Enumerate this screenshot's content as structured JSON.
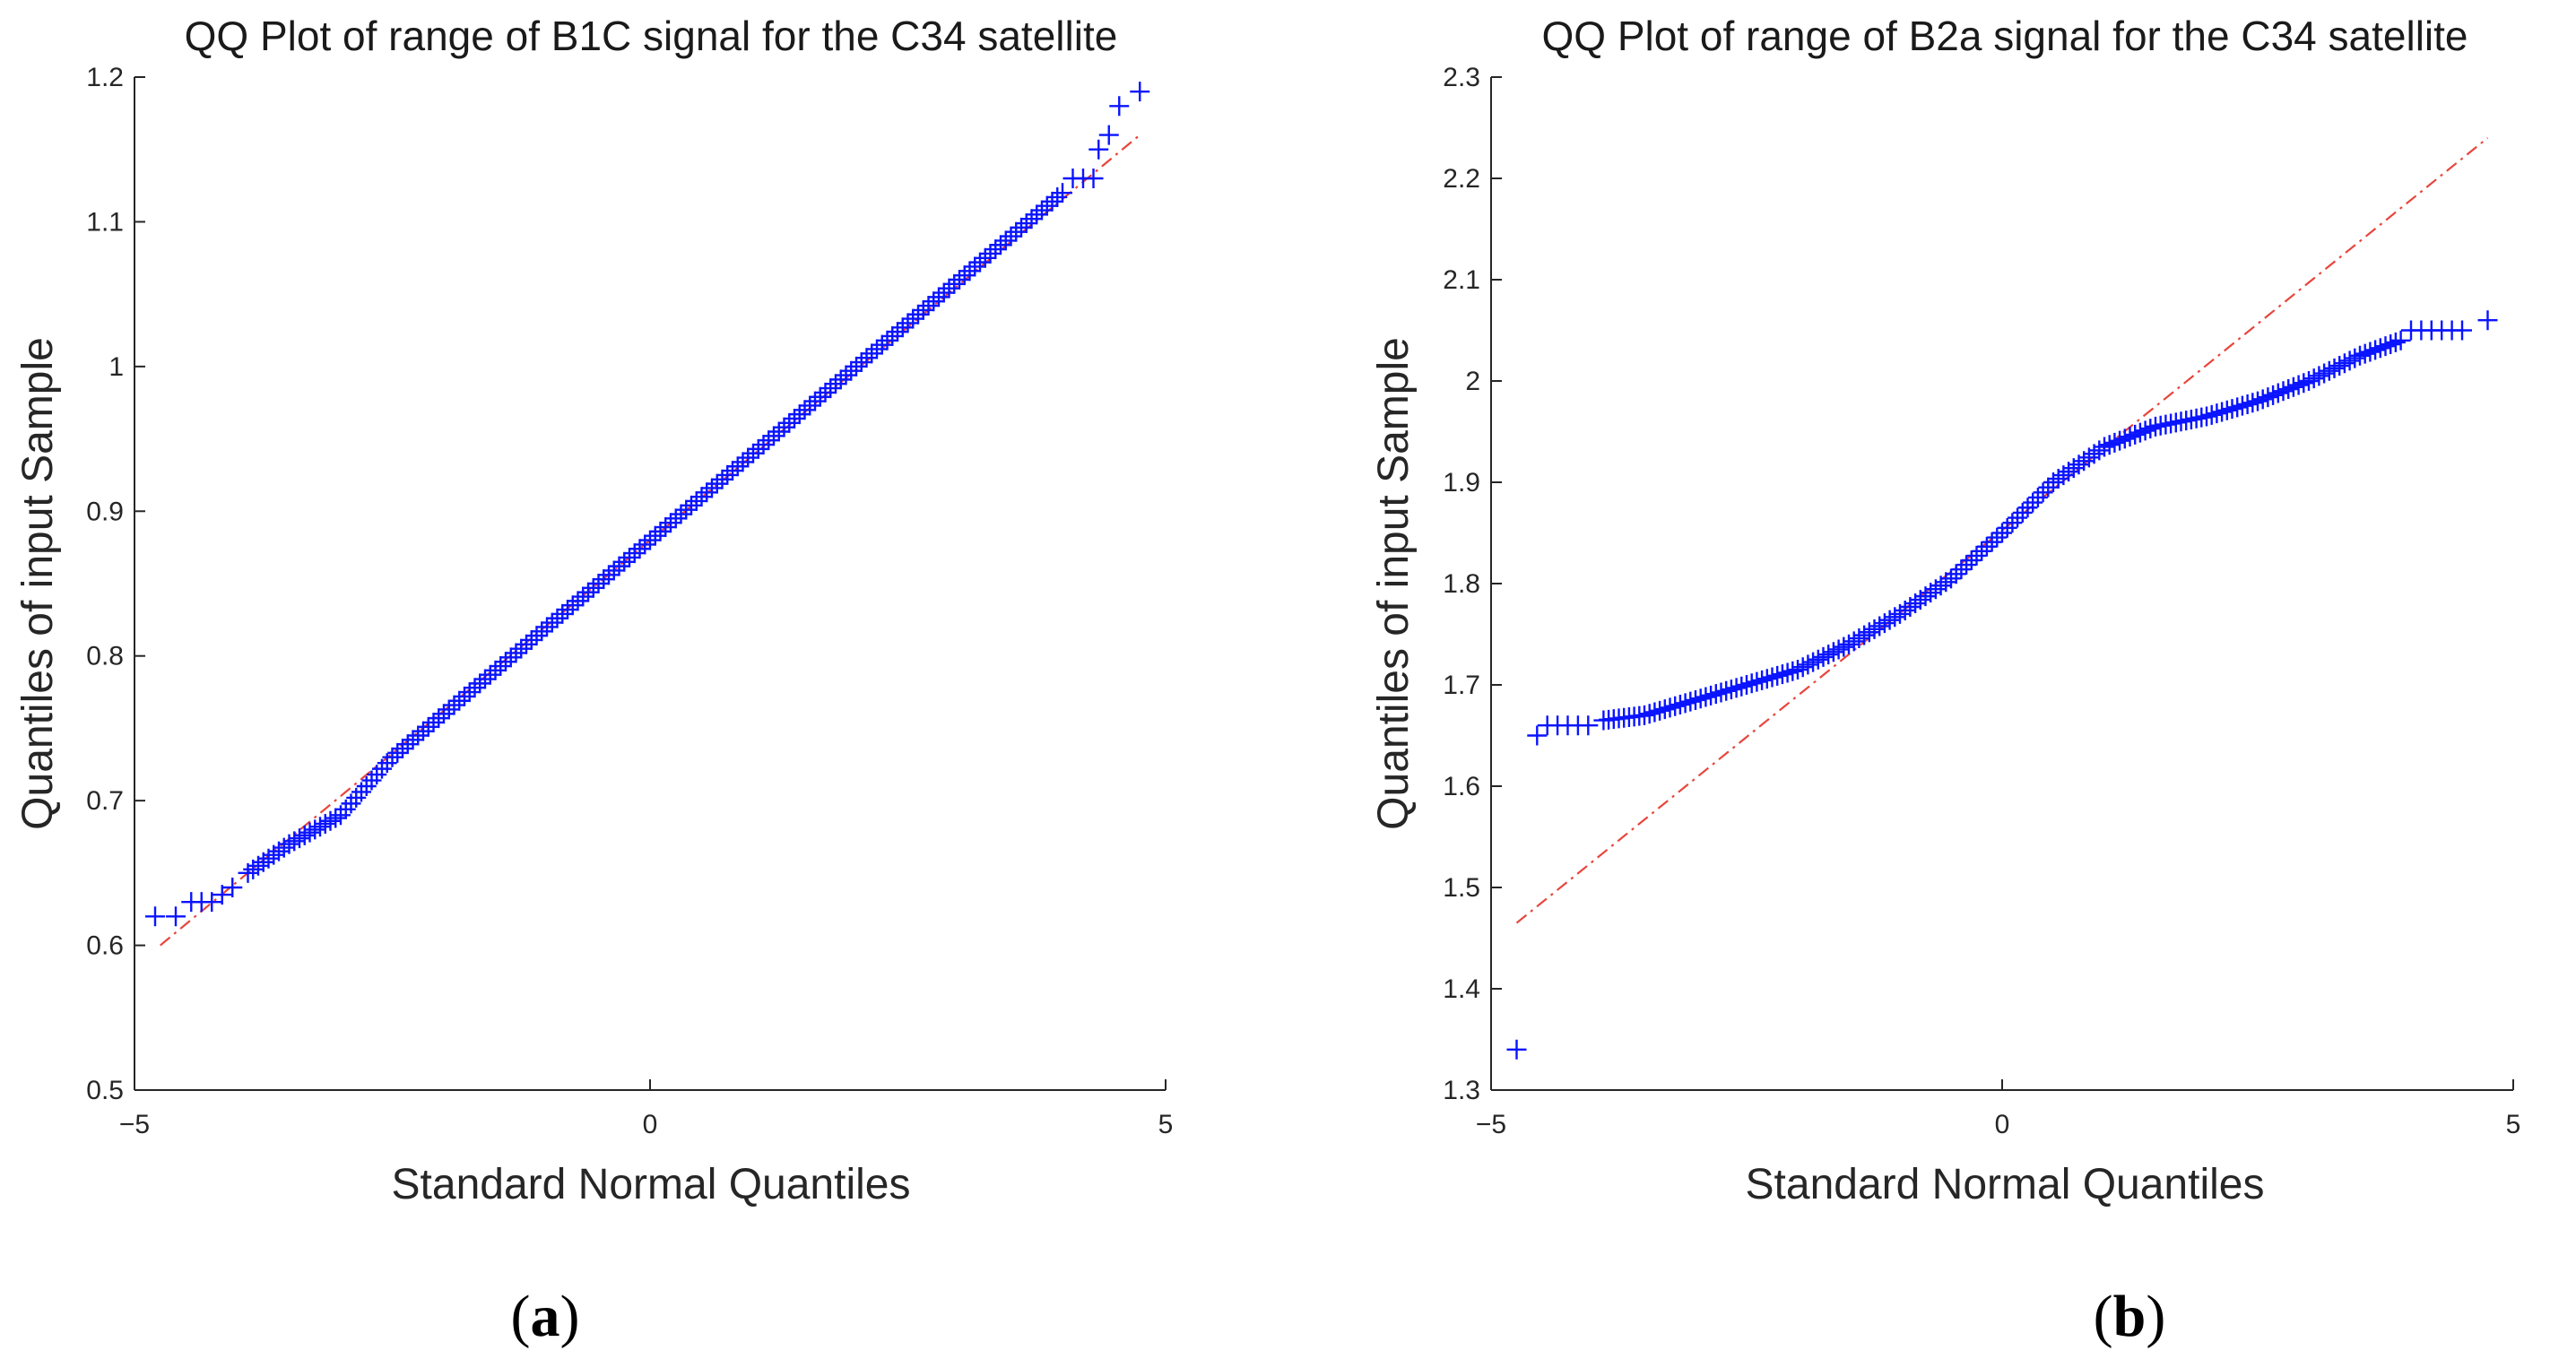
{
  "chart_data": [
    {
      "type": "scatter",
      "panel_label": "a",
      "title": "QQ Plot of range of B1C signal for the C34 satellite",
      "xlabel": "Standard Normal Quantiles",
      "ylabel": "Quantiles of input Sample",
      "xlim": [
        -5,
        5
      ],
      "ylim": [
        0.5,
        1.2
      ],
      "xticks": [
        -5,
        0,
        5
      ],
      "xtick_labels": [
        "−5",
        "0",
        "5"
      ],
      "yticks": [
        0.5,
        0.6,
        0.7,
        0.8,
        0.9,
        1.0,
        1.1,
        1.2
      ],
      "ytick_labels": [
        "0.5",
        "0.6",
        "0.7",
        "0.8",
        "0.9",
        "1",
        "1.1",
        "1.2"
      ],
      "reference_line": {
        "x": [
          -4.75,
          4.75
        ],
        "y": [
          0.6,
          1.16
        ]
      },
      "series": [
        {
          "name": "sample quantiles",
          "marker": "+",
          "color": "#0a14ff",
          "points": [
            [
              -4.8,
              0.62
            ],
            [
              -4.6,
              0.62
            ],
            [
              -4.45,
              0.63
            ],
            [
              -4.35,
              0.63
            ],
            [
              -4.25,
              0.63
            ],
            [
              -4.15,
              0.635
            ],
            [
              -4.05,
              0.64
            ],
            [
              -3.9,
              0.65
            ],
            [
              -3.5,
              0.67
            ],
            [
              -3.0,
              0.69
            ],
            [
              -2.5,
              0.73
            ],
            [
              -2.0,
              0.76
            ],
            [
              -1.5,
              0.79
            ],
            [
              -1.0,
              0.82
            ],
            [
              -0.5,
              0.85
            ],
            [
              0.0,
              0.88
            ],
            [
              0.5,
              0.91
            ],
            [
              1.0,
              0.94
            ],
            [
              1.5,
              0.97
            ],
            [
              2.0,
              1.0
            ],
            [
              2.5,
              1.03
            ],
            [
              3.0,
              1.06
            ],
            [
              3.5,
              1.09
            ],
            [
              4.0,
              1.12
            ],
            [
              4.1,
              1.13
            ],
            [
              4.2,
              1.13
            ],
            [
              4.3,
              1.13
            ],
            [
              4.35,
              1.15
            ],
            [
              4.45,
              1.16
            ],
            [
              4.55,
              1.18
            ],
            [
              4.75,
              1.19
            ]
          ]
        }
      ]
    },
    {
      "type": "scatter",
      "panel_label": "b",
      "title": "QQ Plot of range of B2a signal for the C34 satellite",
      "xlabel": "Standard Normal Quantiles",
      "ylabel": "Quantiles of input Sample",
      "xlim": [
        -5,
        5
      ],
      "ylim": [
        1.3,
        2.3
      ],
      "xticks": [
        -5,
        0,
        5
      ],
      "xtick_labels": [
        "−5",
        "0",
        "5"
      ],
      "yticks": [
        1.3,
        1.4,
        1.5,
        1.6,
        1.7,
        1.8,
        1.9,
        2.0,
        2.1,
        2.2,
        2.3
      ],
      "ytick_labels": [
        "1.3",
        "1.4",
        "1.5",
        "1.6",
        "1.7",
        "1.8",
        "1.9",
        "2",
        "2.1",
        "2.2",
        "2.3"
      ],
      "reference_line": {
        "x": [
          -4.75,
          4.75
        ],
        "y": [
          1.465,
          2.24
        ]
      },
      "series": [
        {
          "name": "sample quantiles",
          "marker": "+",
          "color": "#0a14ff",
          "points": [
            [
              -4.75,
              1.34
            ],
            [
              -4.55,
              1.65
            ],
            [
              -4.45,
              1.66
            ],
            [
              -4.35,
              1.66
            ],
            [
              -4.25,
              1.66
            ],
            [
              -4.15,
              1.66
            ],
            [
              -4.05,
              1.66
            ],
            [
              -3.9,
              1.665
            ],
            [
              -3.5,
              1.67
            ],
            [
              -3.0,
              1.685
            ],
            [
              -2.5,
              1.7
            ],
            [
              -2.0,
              1.715
            ],
            [
              -1.5,
              1.74
            ],
            [
              -1.0,
              1.77
            ],
            [
              -0.5,
              1.805
            ],
            [
              0.0,
              1.85
            ],
            [
              0.5,
              1.9
            ],
            [
              1.0,
              1.935
            ],
            [
              1.5,
              1.955
            ],
            [
              2.0,
              1.965
            ],
            [
              2.5,
              1.98
            ],
            [
              3.0,
              2.0
            ],
            [
              3.5,
              2.025
            ],
            [
              3.9,
              2.04
            ],
            [
              4.0,
              2.05
            ],
            [
              4.1,
              2.05
            ],
            [
              4.2,
              2.05
            ],
            [
              4.3,
              2.05
            ],
            [
              4.4,
              2.05
            ],
            [
              4.5,
              2.05
            ],
            [
              4.75,
              2.06
            ]
          ]
        }
      ]
    }
  ]
}
